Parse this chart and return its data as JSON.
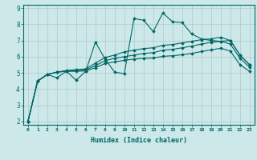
{
  "xlabel": "Humidex (Indice chaleur)",
  "background_color": "#cce8e8",
  "grid_color": "#b0c8c8",
  "line_color": "#006666",
  "xlim": [
    -0.5,
    23.5
  ],
  "ylim": [
    1.8,
    9.2
  ],
  "yticks": [
    2,
    3,
    4,
    5,
    6,
    7,
    8,
    9
  ],
  "xticks": [
    0,
    1,
    2,
    3,
    4,
    5,
    6,
    7,
    8,
    9,
    10,
    11,
    12,
    13,
    14,
    15,
    16,
    17,
    18,
    19,
    20,
    21,
    22,
    23
  ],
  "series": [
    [
      2.0,
      4.5,
      4.9,
      4.7,
      5.1,
      4.55,
      5.1,
      6.9,
      5.85,
      5.05,
      4.95,
      8.35,
      8.25,
      7.55,
      8.7,
      8.15,
      8.1,
      7.4,
      7.1,
      7.0,
      6.95,
      7.0,
      6.1,
      5.5
    ],
    [
      2.0,
      4.5,
      4.9,
      5.05,
      5.15,
      5.2,
      5.25,
      5.6,
      5.95,
      6.1,
      6.3,
      6.4,
      6.5,
      6.55,
      6.7,
      6.75,
      6.85,
      6.95,
      7.05,
      7.1,
      7.2,
      7.0,
      6.1,
      5.5
    ],
    [
      2.0,
      4.5,
      4.9,
      5.05,
      5.1,
      5.15,
      5.18,
      5.45,
      5.75,
      5.9,
      6.0,
      6.1,
      6.2,
      6.25,
      6.4,
      6.45,
      6.55,
      6.65,
      6.78,
      6.88,
      6.95,
      6.78,
      5.9,
      5.35
    ],
    [
      2.0,
      4.5,
      4.9,
      5.05,
      5.1,
      5.1,
      5.12,
      5.32,
      5.58,
      5.68,
      5.78,
      5.85,
      5.9,
      5.92,
      6.02,
      6.06,
      6.12,
      6.2,
      6.32,
      6.42,
      6.52,
      6.35,
      5.5,
      5.1
    ]
  ]
}
